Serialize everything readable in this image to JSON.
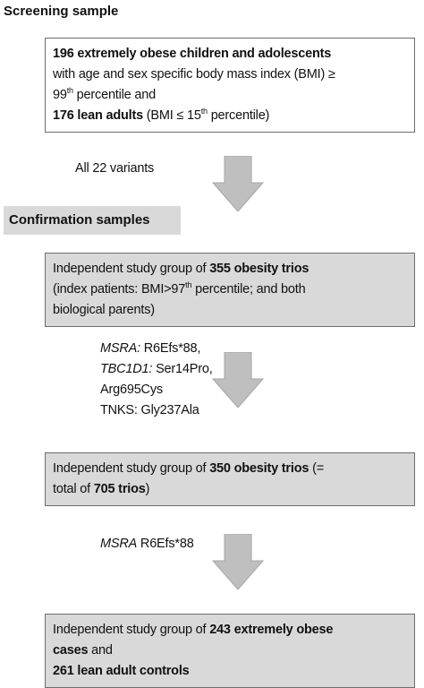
{
  "screening_title": "Screening sample",
  "confirmation_title": "Confirmation samples",
  "boxes": [
    {
      "lines": [
        [
          "196 extremely obese children and adolescents"
        ],
        [
          "with age and sex specific body mass index (BMI) ≥"
        ],
        [
          "99",
          "th",
          " percentile and"
        ],
        [
          "176 lean adults",
          " (BMI ≤ 15",
          "th",
          " percentile)"
        ]
      ]
    },
    {
      "lines": [
        [
          "Independent study group of ",
          "355 obesity trios"
        ],
        [
          "(index patients: BMI>97",
          "th",
          " percentile; and both"
        ],
        [
          "biological parents)"
        ]
      ]
    },
    {
      "lines": [
        [
          "Independent study group of ",
          "350 obesity trios",
          " (="
        ],
        [
          "total of ",
          "705 trios",
          ")"
        ]
      ]
    },
    {
      "lines": [
        [
          "Independent study group of ",
          "243 extremely obese"
        ],
        [
          "cases",
          " and"
        ],
        [
          "261 lean adult controls"
        ]
      ]
    }
  ],
  "transitions": [
    {
      "lines": [
        [
          "All 22 variants"
        ]
      ]
    },
    {
      "lines": [
        [
          "MSRA:",
          " R6Efs*88,"
        ],
        [
          "TBC1D1:",
          " Ser14Pro,"
        ],
        [
          "Arg695Cys"
        ],
        [
          "TNKS: Gly237Ala"
        ]
      ]
    },
    {
      "lines": [
        [
          "MSRA",
          " R6Efs*88"
        ]
      ]
    }
  ]
}
